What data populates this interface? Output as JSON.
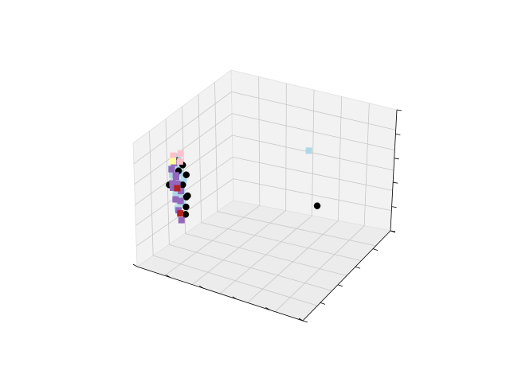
{
  "chart_data": {
    "type": "scatter",
    "projection": "3d",
    "title": "",
    "xlabel": "",
    "ylabel": "",
    "zlabel": "",
    "tick_labels_shown": false,
    "grid": true,
    "legend": "none",
    "note": "",
    "axes_ranges": {
      "x": [
        0,
        1
      ],
      "y": [
        0,
        1
      ],
      "z": [
        0,
        1
      ]
    },
    "series": [
      {
        "marker": "square",
        "color": "#add8e6",
        "points": [
          [
            0.1,
            0.25,
            0.55
          ],
          [
            0.11,
            0.24,
            0.62
          ],
          [
            0.12,
            0.26,
            0.48
          ],
          [
            0.1,
            0.27,
            0.7
          ],
          [
            0.13,
            0.23,
            0.58
          ],
          [
            0.09,
            0.25,
            0.66
          ],
          [
            0.12,
            0.28,
            0.52
          ],
          [
            0.11,
            0.22,
            0.74
          ],
          [
            0.14,
            0.25,
            0.45
          ],
          [
            0.1,
            0.24,
            0.6
          ],
          [
            0.13,
            0.26,
            0.68
          ],
          [
            0.08,
            0.26,
            0.56
          ],
          [
            0.12,
            0.23,
            0.4
          ],
          [
            0.11,
            0.27,
            0.78
          ],
          [
            0.1,
            0.25,
            0.5
          ],
          [
            0.14,
            0.27,
            0.63
          ],
          [
            0.09,
            0.23,
            0.71
          ],
          [
            0.12,
            0.24,
            0.57
          ],
          [
            0.13,
            0.22,
            0.49
          ],
          [
            0.1,
            0.28,
            0.65
          ],
          [
            0.11,
            0.26,
            0.44
          ],
          [
            0.12,
            0.25,
            0.73
          ],
          [
            0.09,
            0.27,
            0.53
          ],
          [
            0.14,
            0.24,
            0.61
          ],
          [
            0.1,
            0.22,
            0.67
          ],
          [
            0.13,
            0.28,
            0.59
          ],
          [
            0.11,
            0.25,
            0.8
          ],
          [
            0.12,
            0.27,
            0.42
          ],
          [
            0.65,
            0.7,
            0.85
          ]
        ]
      },
      {
        "marker": "circle",
        "color": "#000000",
        "points": [
          [
            0.15,
            0.24,
            0.6
          ],
          [
            0.16,
            0.27,
            0.5
          ],
          [
            0.14,
            0.22,
            0.72
          ],
          [
            0.16,
            0.25,
            0.42
          ],
          [
            0.15,
            0.28,
            0.66
          ],
          [
            0.08,
            0.22,
            0.58
          ],
          [
            0.16,
            0.23,
            0.77
          ],
          [
            0.14,
            0.29,
            0.47
          ],
          [
            0.09,
            0.28,
            0.75
          ],
          [
            0.15,
            0.26,
            0.35
          ],
          [
            0.9,
            0.35,
            0.7
          ]
        ]
      },
      {
        "marker": "square",
        "color": "#9467bd",
        "points": [
          [
            0.09,
            0.24,
            0.55
          ],
          [
            0.1,
            0.26,
            0.63
          ],
          [
            0.11,
            0.23,
            0.47
          ],
          [
            0.08,
            0.25,
            0.69
          ],
          [
            0.12,
            0.27,
            0.52
          ],
          [
            0.1,
            0.22,
            0.6
          ],
          [
            0.11,
            0.28,
            0.43
          ],
          [
            0.09,
            0.26,
            0.74
          ],
          [
            0.12,
            0.24,
            0.38
          ],
          [
            0.1,
            0.27,
            0.57
          ],
          [
            0.13,
            0.25,
            0.3
          ],
          [
            0.11,
            0.24,
            0.66
          ]
        ]
      },
      {
        "marker": "square",
        "color": "#ffc0cb",
        "points": [
          [
            0.12,
            0.28,
            0.82
          ],
          [
            0.08,
            0.27,
            0.79
          ],
          [
            0.15,
            0.22,
            0.8
          ]
        ]
      },
      {
        "marker": "square",
        "color": "#b22222",
        "points": [
          [
            0.11,
            0.25,
            0.55
          ],
          [
            0.13,
            0.24,
            0.36
          ]
        ]
      },
      {
        "marker": "square",
        "color": "#ffff99",
        "points": [
          [
            0.09,
            0.25,
            0.76
          ]
        ]
      }
    ]
  }
}
